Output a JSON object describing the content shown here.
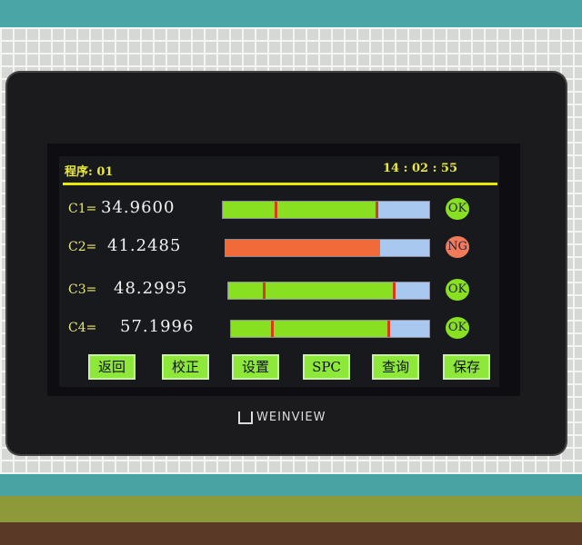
{
  "header": {
    "program": "程序: 01",
    "time": "14 : 02 : 55"
  },
  "channels": [
    {
      "label": "C1=",
      "value": "34.9600",
      "status": "OK",
      "fill_pct": 75,
      "marker_pct": 25,
      "fill_color": "#88e020"
    },
    {
      "label": "C2=",
      "value": "41.2485",
      "status": "NG",
      "fill_pct": 76,
      "marker_pct": null,
      "fill_color": "#f06a3a"
    },
    {
      "label": "C3=",
      "value": "48.2995",
      "status": "OK",
      "fill_pct": 83,
      "marker_pct": 17,
      "fill_color": "#88e020"
    },
    {
      "label": "C4=",
      "value": "57.1996",
      "status": "OK",
      "fill_pct": 80,
      "marker_pct": 20,
      "fill_color": "#88e020"
    }
  ],
  "status_colors": {
    "OK": "#88e020",
    "NG": "#f07a5a"
  },
  "buttons": [
    "返回",
    "校正",
    "设置",
    "SPC",
    "查询",
    "保存"
  ],
  "brand": "WEINVIEW"
}
